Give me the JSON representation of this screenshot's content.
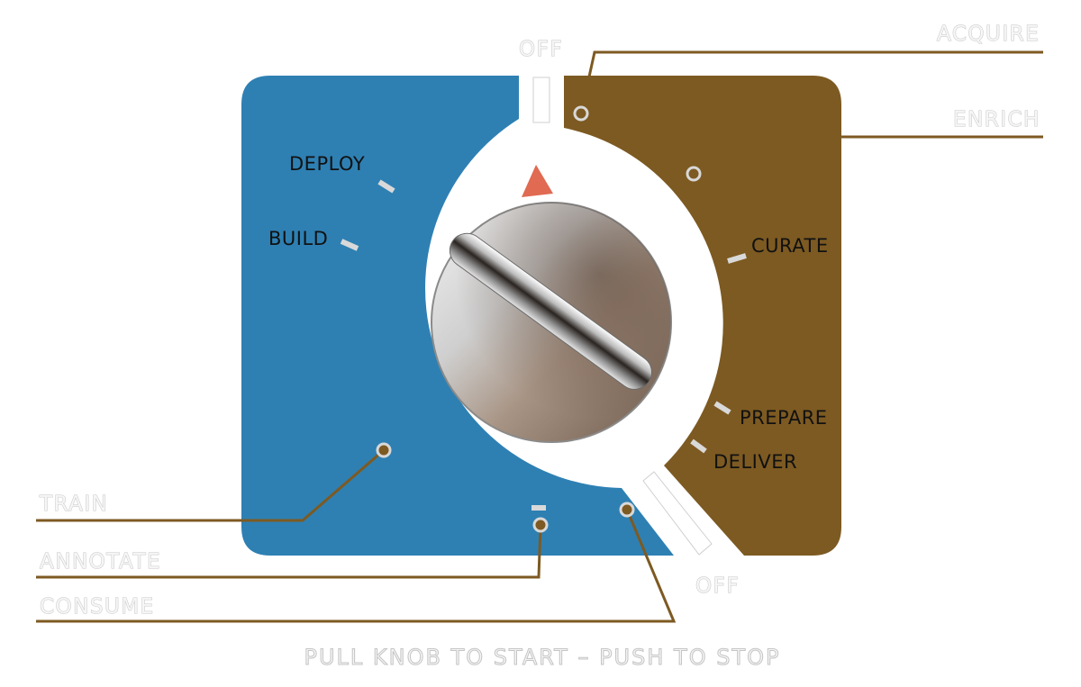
{
  "colors": {
    "left_panel": "#2e80b3",
    "right_panel": "#7d5a22",
    "leader_line": "#7d5a22",
    "pointer": "#e06a52"
  },
  "labels": {
    "off_top": "OFF",
    "off_bottom": "OFF",
    "acquire": "ACQUIRE",
    "enrich": "ENRICH",
    "curate": "CURATE",
    "prepare": "PREPARE",
    "deliver": "DELIVER",
    "deploy": "DEPLOY",
    "build": "BUILD",
    "train": "TRAIN",
    "annotate": "ANNOTATE",
    "consume": "CONSUME"
  },
  "footer": "PULL KNOB TO START – PUSH TO STOP"
}
